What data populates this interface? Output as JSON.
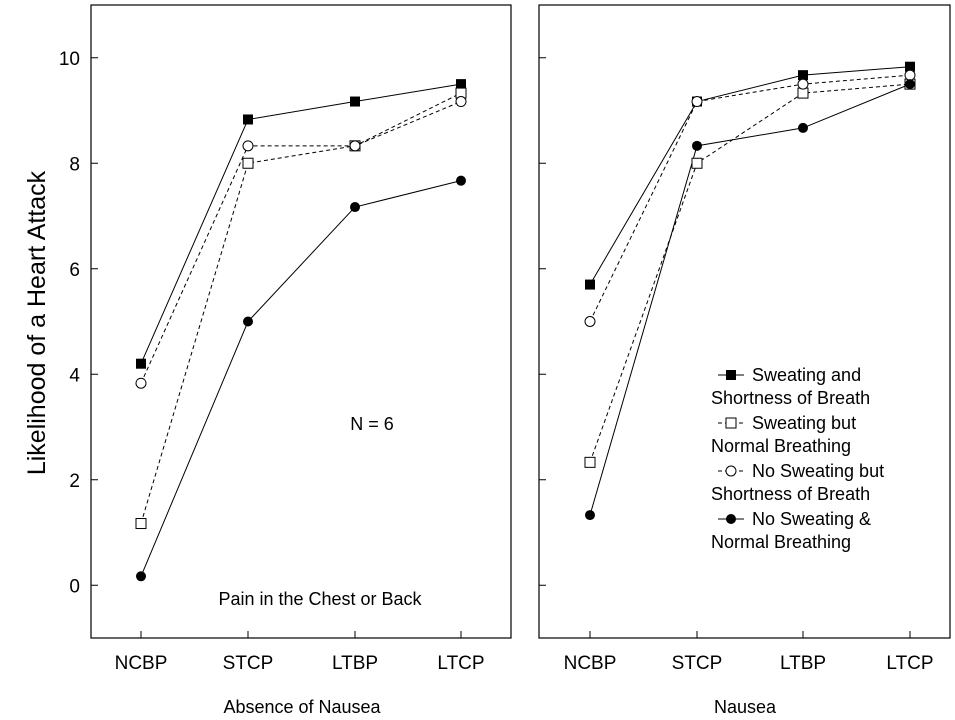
{
  "chart_data": {
    "type": "line",
    "ylabel": "Likelihood of a Heart Attack",
    "ylim": [
      -1,
      11
    ],
    "yticks": [
      "0",
      "2",
      "4",
      "6",
      "8",
      "10"
    ],
    "categories": [
      "NCBP",
      "STCP",
      "LTBP",
      "LTCP"
    ],
    "legend": {
      "placement": "lower-right of right panel",
      "entries": [
        {
          "line1": "Sweating and",
          "line2": "Shortness of Breath"
        },
        {
          "line1": "Sweating but",
          "line2": "Normal Breathing"
        },
        {
          "line1": "No Sweating but",
          "line2": "Shortness of Breath"
        },
        {
          "line1": "No Sweating &",
          "line2": "Normal Breathing"
        }
      ]
    },
    "series_styles": [
      {
        "marker": "filled-square",
        "dash": "solid"
      },
      {
        "marker": "open-square",
        "dash": "dashed"
      },
      {
        "marker": "open-circle",
        "dash": "dashed"
      },
      {
        "marker": "filled-circle",
        "dash": "solid"
      }
    ],
    "panels": [
      {
        "xlabel": "Absence of Nausea",
        "annotations": [
          "N = 6",
          "Pain in the Chest or Back"
        ],
        "series": [
          {
            "values": [
              4.2,
              8.83,
              9.17,
              9.5
            ]
          },
          {
            "values": [
              1.17,
              8.0,
              8.33,
              9.33
            ]
          },
          {
            "values": [
              3.83,
              8.33,
              8.33,
              9.17
            ]
          },
          {
            "values": [
              0.17,
              5.0,
              7.17,
              7.67
            ]
          }
        ]
      },
      {
        "xlabel": "Nausea",
        "annotations": [],
        "series": [
          {
            "values": [
              5.7,
              9.17,
              9.67,
              9.83
            ]
          },
          {
            "values": [
              2.33,
              8.0,
              9.33,
              9.5
            ]
          },
          {
            "values": [
              5.0,
              9.17,
              9.5,
              9.67
            ]
          },
          {
            "values": [
              1.33,
              8.33,
              8.67,
              9.5
            ]
          }
        ]
      }
    ]
  }
}
